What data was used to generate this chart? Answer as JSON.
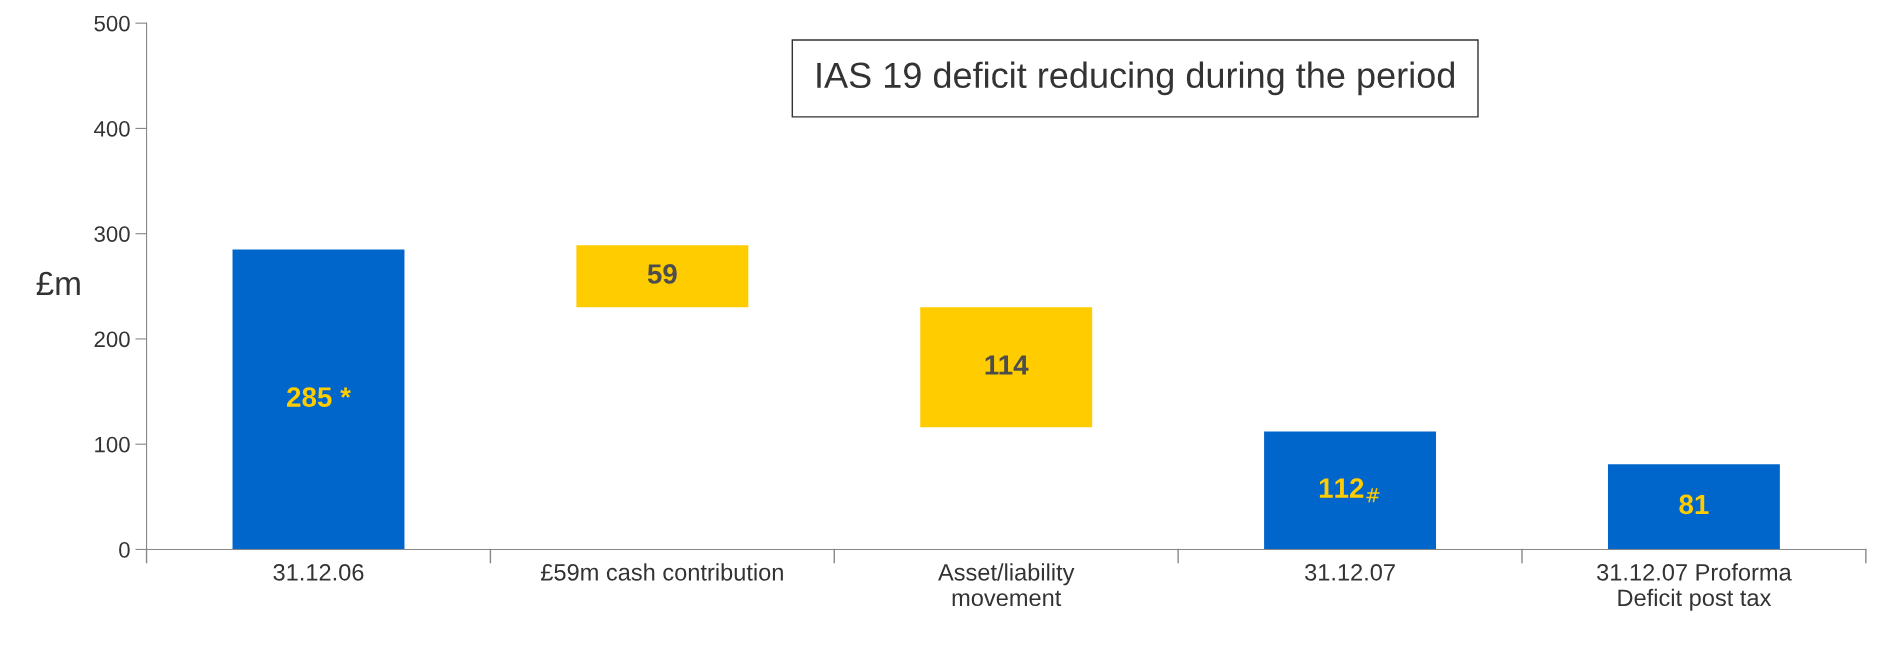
{
  "chart_data": {
    "type": "bar",
    "title": "IAS 19 deficit reducing during the period",
    "ylabel": "£m",
    "categories": [
      "31.12.06",
      "£59m cash contribution",
      "Asset/liability\nmovement",
      "31.12.07",
      "31.12.07 Proforma\nDeficit post tax"
    ],
    "values": [
      285,
      59,
      114,
      112,
      81
    ],
    "base": [
      0,
      230,
      116,
      0,
      0
    ],
    "colors": [
      "#0066cc",
      "#ffcc00",
      "#ffcc00",
      "#0066cc",
      "#0066cc"
    ],
    "value_labels": [
      "285 *",
      "59",
      "114",
      "112$_{#}$",
      "81"
    ],
    "ylim": [
      0,
      500
    ],
    "yticks": [
      0,
      100,
      200,
      300,
      400,
      500
    ],
    "grid": false,
    "legend": false
  }
}
